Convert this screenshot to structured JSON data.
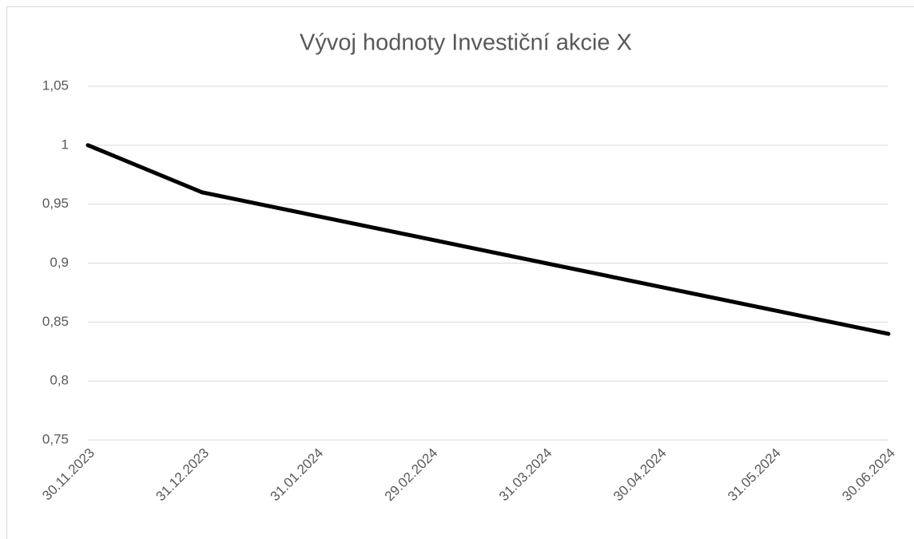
{
  "chart_data": {
    "type": "line",
    "title": "Vývoj hodnoty Investiční akcie X",
    "categories": [
      "30.11.2023",
      "31.12.2023",
      "31.01.2024",
      "29.02.2024",
      "31.03.2024",
      "30.04.2024",
      "31.05.2024",
      "30.06.2024"
    ],
    "series": [
      {
        "name": "Investiční akcie X",
        "color": "#000000",
        "values": [
          1,
          0.96,
          0.94,
          0.92,
          0.9,
          0.88,
          0.86,
          0.84
        ]
      }
    ],
    "ylim": [
      0.75,
      1.05
    ],
    "yticks": [
      {
        "value": 0.75,
        "label": "0,75"
      },
      {
        "value": 0.8,
        "label": "0,8"
      },
      {
        "value": 0.85,
        "label": "0,85"
      },
      {
        "value": 0.9,
        "label": "0,9"
      },
      {
        "value": 0.95,
        "label": "0,95"
      },
      1,
      {
        "value": 1.05,
        "label": "1,05"
      }
    ],
    "grid": true
  }
}
